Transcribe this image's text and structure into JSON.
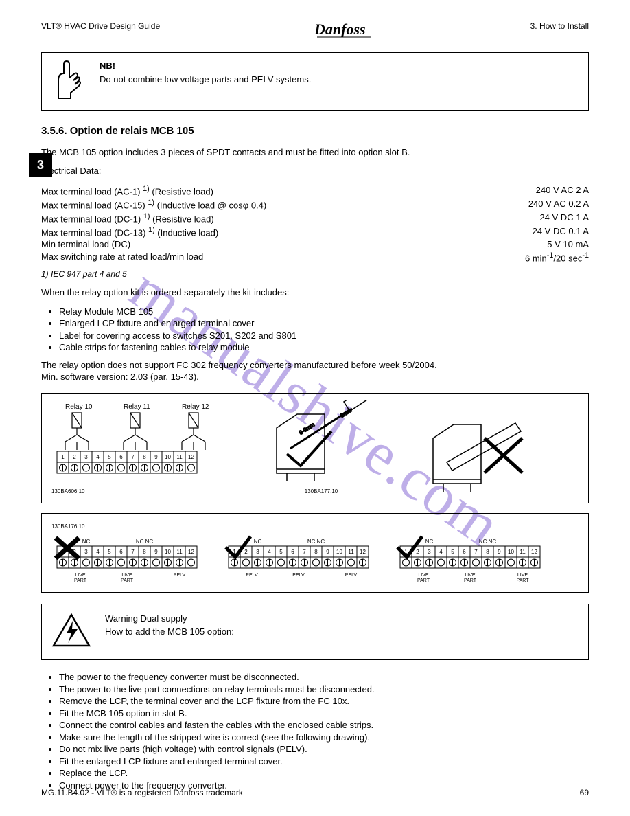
{
  "watermark": "manualshive.com",
  "header": {
    "left": "VLT® HVAC Drive Design Guide",
    "right_line1": "3. How to Install"
  },
  "note": {
    "nb": "NB!",
    "text": "Do not combine low voltage parts and PELV systems."
  },
  "section": {
    "side_num": "3",
    "num": "3.5.6.",
    "title": "Option de relais MCB 105"
  },
  "intro": {
    "p1": "The MCB 105 option includes 3 pieces of SPDT contacts and must be fitted into option slot B.",
    "p2": "Electrical Data:"
  },
  "spec": {
    "rows": [
      {
        "label": "Max terminal load (AC-1) <sup>1)</sup> (Resistive load)",
        "value": "240 V AC 2 A"
      },
      {
        "label": "Max terminal load (AC-15) <sup>1)</sup> (Inductive load @ cosφ 0.4)",
        "value": "240 V AC 0.2 A"
      },
      {
        "label": "Max terminal load (DC-1) <sup>1)</sup> (Resistive load)",
        "value": "24 V DC 1 A"
      },
      {
        "label": "Max terminal load (DC-13) <sup>1)</sup> (Inductive load)",
        "value": "24 V DC 0.1 A"
      },
      {
        "label": "Min terminal load (DC)",
        "value": "5 V 10 mA"
      },
      {
        "label": "Max switching rate at rated load/min load",
        "value": "6 min<sup>-1</sup>/20 sec<sup>-1</sup>"
      }
    ],
    "footnote": "1) IEC 947 part 4 and 5"
  },
  "kit": {
    "lead": "When the relay option kit is ordered separately the kit includes:",
    "items": [
      "Relay Module MCB 105",
      "Enlarged LCP fixture and enlarged terminal cover",
      "Label for covering access to switches S201, S202 and S801",
      "Cable strips for fastening cables to relay module"
    ],
    "tail": "The relay option does not support FC 302 frequency converters manufactured before week 50/2004.\nMin. software version: 2.03 (par. 15-43)."
  },
  "figure1": {
    "relays": [
      "Relay 10",
      "Relay 11",
      "Relay 12"
    ],
    "term_numbers": [
      "1",
      "2",
      "3",
      "4",
      "5",
      "6",
      "7",
      "8",
      "9",
      "10",
      "11",
      "12"
    ],
    "left_ref": "130BA606.10",
    "right_ref": "130BA177.10",
    "screwdriver_len": "8-9mm",
    "screwdriver_tip": "2mm"
  },
  "figure2": {
    "ref": "130BA176.10",
    "labels": {
      "nc": "NC",
      "ncnc": "NC NC",
      "live": "LIVE\nPART",
      "pelv": "PELV"
    },
    "term_numbers": [
      "1",
      "2",
      "3",
      "4",
      "5",
      "6",
      "7",
      "8",
      "9",
      "10",
      "11",
      "12"
    ]
  },
  "warning": {
    "title": "Warning Dual supply",
    "sub": "How to add the MCB 105 option:"
  },
  "steps": {
    "items": [
      "The power to the frequency converter must be disconnected.",
      "The power to the live part connections on relay terminals must be disconnected.",
      "Remove the LCP, the terminal cover and the LCP fixture from the FC 10x.",
      "Fit the MCB 105 option in slot B.",
      "Connect the control cables and fasten the cables with the enclosed cable strips.",
      "Make sure the length of the stripped wire is correct (see the following drawing).",
      "Do not mix live parts (high voltage) with control signals (PELV).",
      "Fit the enlarged LCP fixture and enlarged terminal cover.",
      "Replace the LCP.",
      "Connect power to the frequency converter."
    ]
  },
  "footer": {
    "code": "MG.11.B4.02 - VLT® is a registered Danfoss trademark",
    "page": "69"
  },
  "colors": {
    "text": "#000000",
    "bg": "#ffffff",
    "watermark": "#8a6dd6"
  }
}
